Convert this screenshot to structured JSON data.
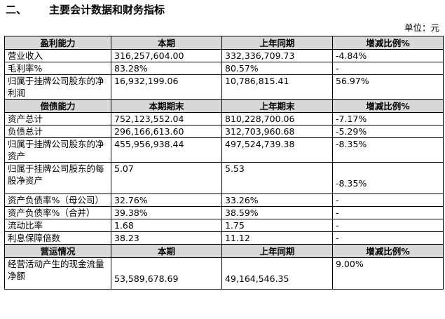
{
  "heading": {
    "number": "二、",
    "title": "主要会计数据和财务指标"
  },
  "unit_label": "单位：元",
  "profit": {
    "header": [
      "盈利能力",
      "本期",
      "上年同期",
      "增减比例%"
    ],
    "rows": [
      [
        "营业收入",
        "316,257,604.00",
        "332,336,709.73",
        "-4.84%"
      ],
      [
        "毛利率%",
        "83.28%",
        "80.57%",
        "-"
      ],
      [
        "归属于挂牌公司股东的净利润",
        "16,932,199.06",
        "10,786,815.41",
        "56.97%"
      ]
    ]
  },
  "solvency": {
    "header": [
      "偿债能力",
      "本期期末",
      "上年期末",
      "增减比例%"
    ],
    "rows": [
      [
        "资产总计",
        "752,123,552.04",
        "810,228,700.06",
        "-7.17%"
      ],
      [
        "负债总计",
        "296,166,613.60",
        "312,703,960.68",
        "-5.29%"
      ],
      [
        "归属于挂牌公司股东的净资产",
        "455,956,938.44",
        "497,524,739.38",
        "-8.35%"
      ],
      [
        "归属于挂牌公司股东的每股净资产",
        "5.07",
        "5.53",
        "-8.35%"
      ],
      [
        "资产负债率%（母公司）",
        "32.76%",
        "33.26%",
        "-"
      ],
      [
        "资产负债率%（合并）",
        "39.38%",
        "38.59%",
        "-"
      ],
      [
        "流动比率",
        "1.68",
        "1.75",
        "-"
      ],
      [
        "利息保障倍数",
        "38.23",
        "11.12",
        "-"
      ]
    ]
  },
  "operation": {
    "header": [
      "营运情况",
      "本期",
      "上年同期",
      "增减比例%"
    ],
    "rows": [
      [
        "经营活动产生的现金流量净额",
        "53,589,678.69",
        "49,164,546.35",
        "9.00%"
      ]
    ]
  }
}
